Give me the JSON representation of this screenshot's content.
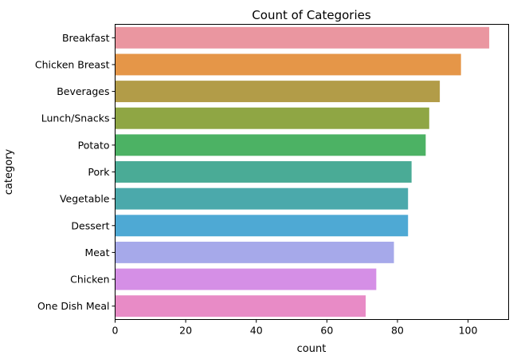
{
  "chart_data": {
    "type": "bar",
    "orientation": "horizontal",
    "title": "Count of Categories",
    "xlabel": "count",
    "ylabel": "category",
    "xlim": [
      0,
      111.5
    ],
    "x_ticks": [
      0,
      20,
      40,
      60,
      80,
      100
    ],
    "grid": false,
    "categories": [
      "Breakfast",
      "Chicken Breast",
      "Beverages",
      "Lunch/Snacks",
      "Potato",
      "Pork",
      "Vegetable",
      "Dessert",
      "Meat",
      "Chicken",
      "One Dish Meal"
    ],
    "values": [
      106,
      98,
      92,
      89,
      88,
      84,
      83,
      83,
      79,
      74,
      71
    ],
    "colors": [
      "#ea96a0",
      "#e59648",
      "#b29c48",
      "#8fa644",
      "#4cb264",
      "#4aab96",
      "#4ba9ab",
      "#4ea9d4",
      "#a6a9ea",
      "#d58fe6",
      "#e88bc6"
    ]
  }
}
